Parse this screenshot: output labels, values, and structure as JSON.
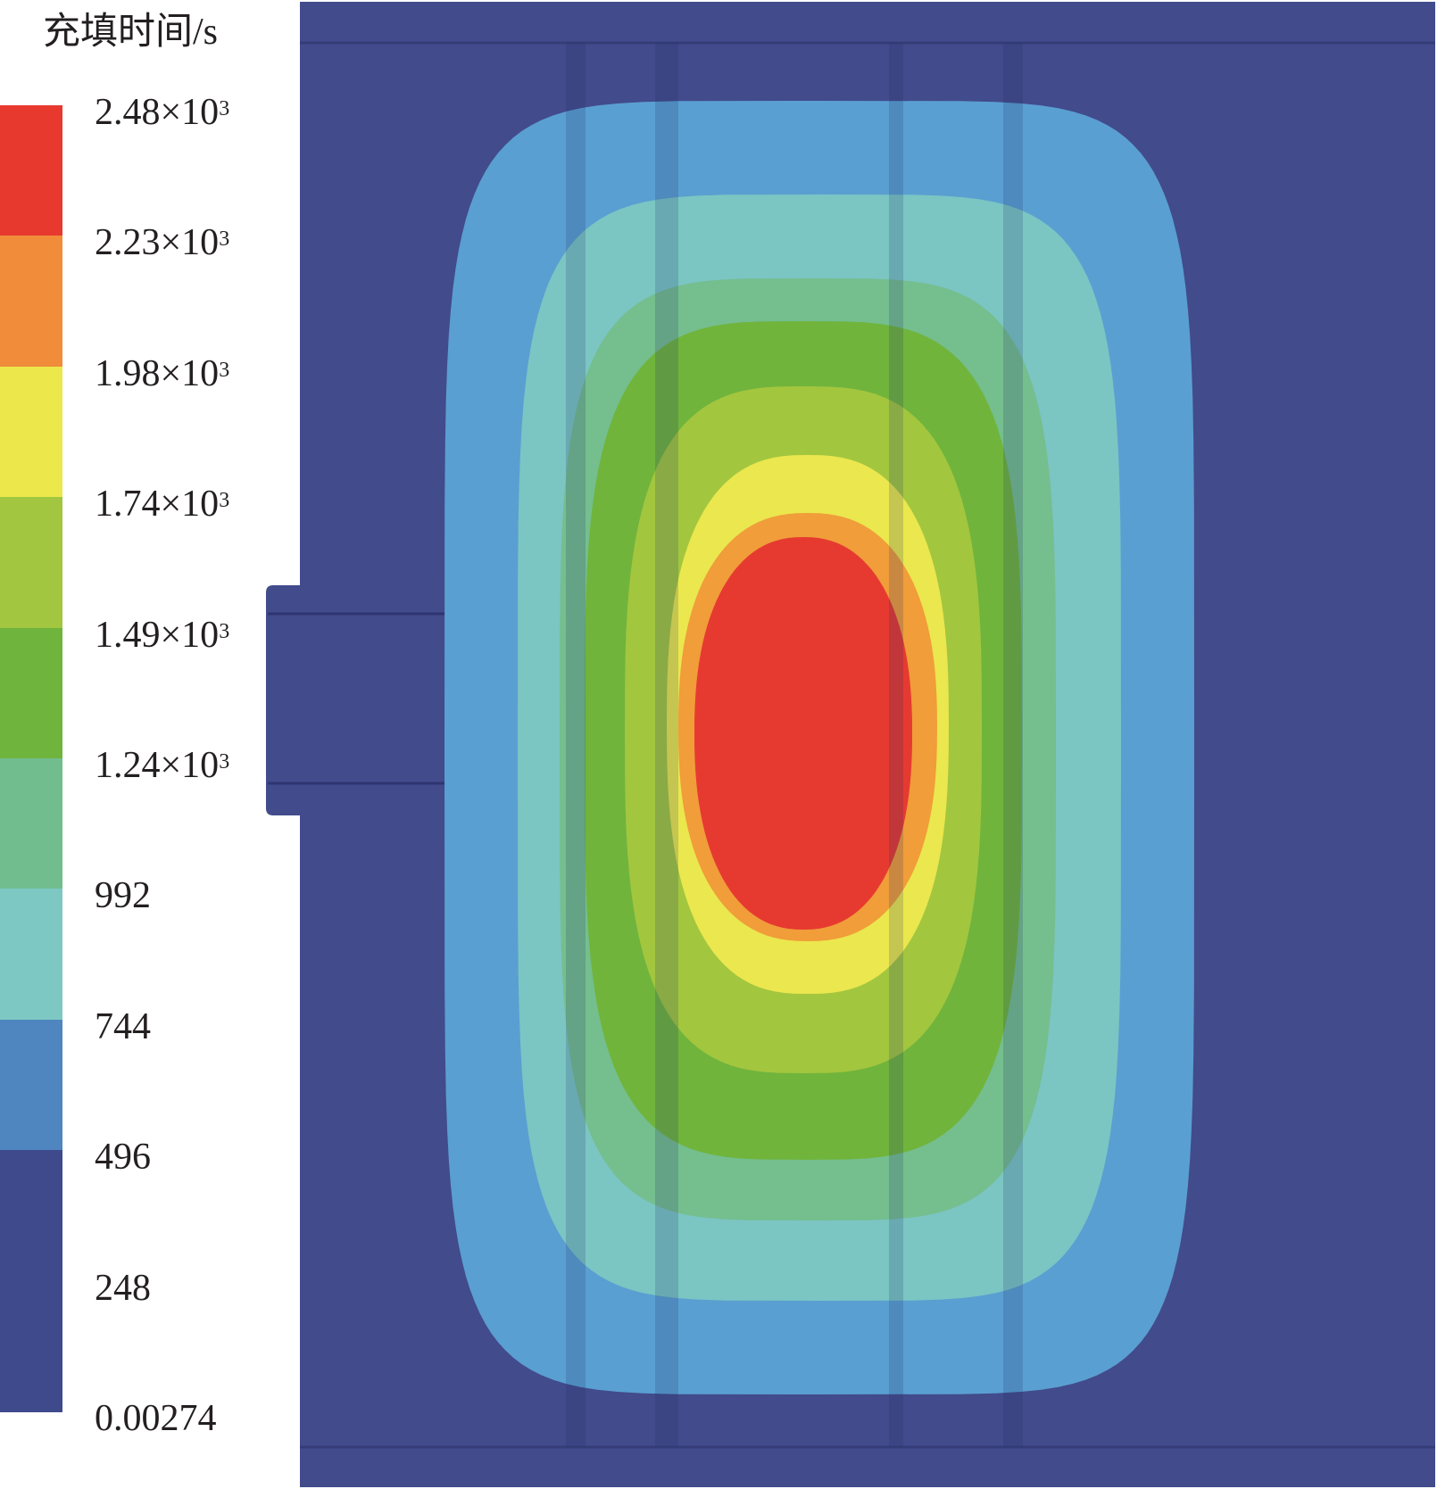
{
  "chart_data": {
    "type": "heatmap",
    "title": "充填时间/s",
    "colorbar": {
      "levels": [
        {
          "label_mantissa": "2.48",
          "label_exp": "3",
          "value": 2480
        },
        {
          "label_mantissa": "2.23",
          "label_exp": "3",
          "value": 2230
        },
        {
          "label_mantissa": "1.98",
          "label_exp": "3",
          "value": 1980
        },
        {
          "label_mantissa": "1.74",
          "label_exp": "3",
          "value": 1740
        },
        {
          "label_mantissa": "1.49",
          "label_exp": "3",
          "value": 1490
        },
        {
          "label_mantissa": "1.24",
          "label_exp": "3",
          "value": 1240
        },
        {
          "label_mantissa": "992",
          "label_exp": "",
          "value": 992
        },
        {
          "label_mantissa": "744",
          "label_exp": "",
          "value": 744
        },
        {
          "label_mantissa": "496",
          "label_exp": "",
          "value": 496
        },
        {
          "label_mantissa": "248",
          "label_exp": "",
          "value": 248
        },
        {
          "label_mantissa": "0.00274",
          "label_exp": "",
          "value": 0.00274
        }
      ],
      "band_colors": [
        "#e8392f",
        "#f08c3a",
        "#ece84c",
        "#a2c640",
        "#6fb43d",
        "#72bd8e",
        "#7ec8c4",
        "#4f86c0",
        "#3f4a8c"
      ]
    },
    "field_colors": [
      "#424b8c",
      "#5a9fd1",
      "#7bc5c3",
      "#75be8e",
      "#70b43c",
      "#a3c63f",
      "#ebe74e",
      "#f09d3a",
      "#e63a30"
    ],
    "contour_band_values": [
      248,
      496,
      744,
      992,
      1240,
      1490,
      1740,
      1980,
      2230
    ]
  }
}
